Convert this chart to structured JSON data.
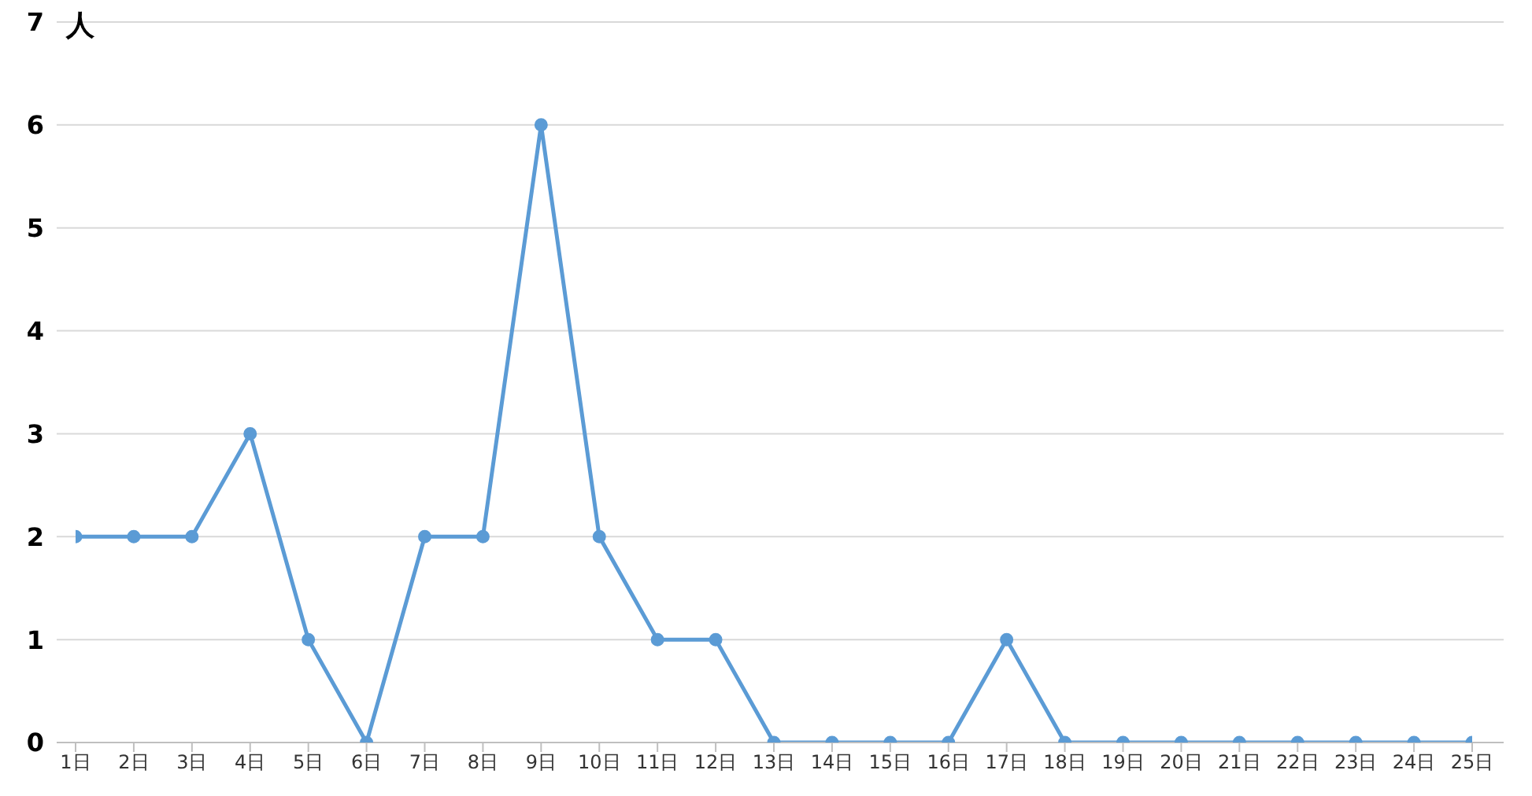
{
  "chart_data": {
    "type": "line",
    "ylabel": "人",
    "categories": [
      "1日",
      "2日",
      "3日",
      "4日",
      "5日",
      "6日",
      "7日",
      "8日",
      "9日",
      "10日",
      "11日",
      "12日",
      "13日",
      "14日",
      "15日",
      "16日",
      "17日",
      "18日",
      "19日",
      "20日",
      "21日",
      "22日",
      "23日",
      "24日",
      "25日"
    ],
    "series": [
      {
        "color": "#5b9bd5",
        "values": [
          2,
          2,
          2,
          3,
          1,
          0,
          2,
          2,
          6,
          2,
          1,
          1,
          0,
          0,
          0,
          0,
          1,
          0,
          0,
          0,
          0,
          0,
          0,
          0,
          0
        ]
      }
    ],
    "ylim": [
      0,
      7
    ],
    "yticks": [
      0,
      1,
      2,
      3,
      4,
      5,
      6,
      7
    ],
    "grid": "y",
    "marker": "circle"
  }
}
